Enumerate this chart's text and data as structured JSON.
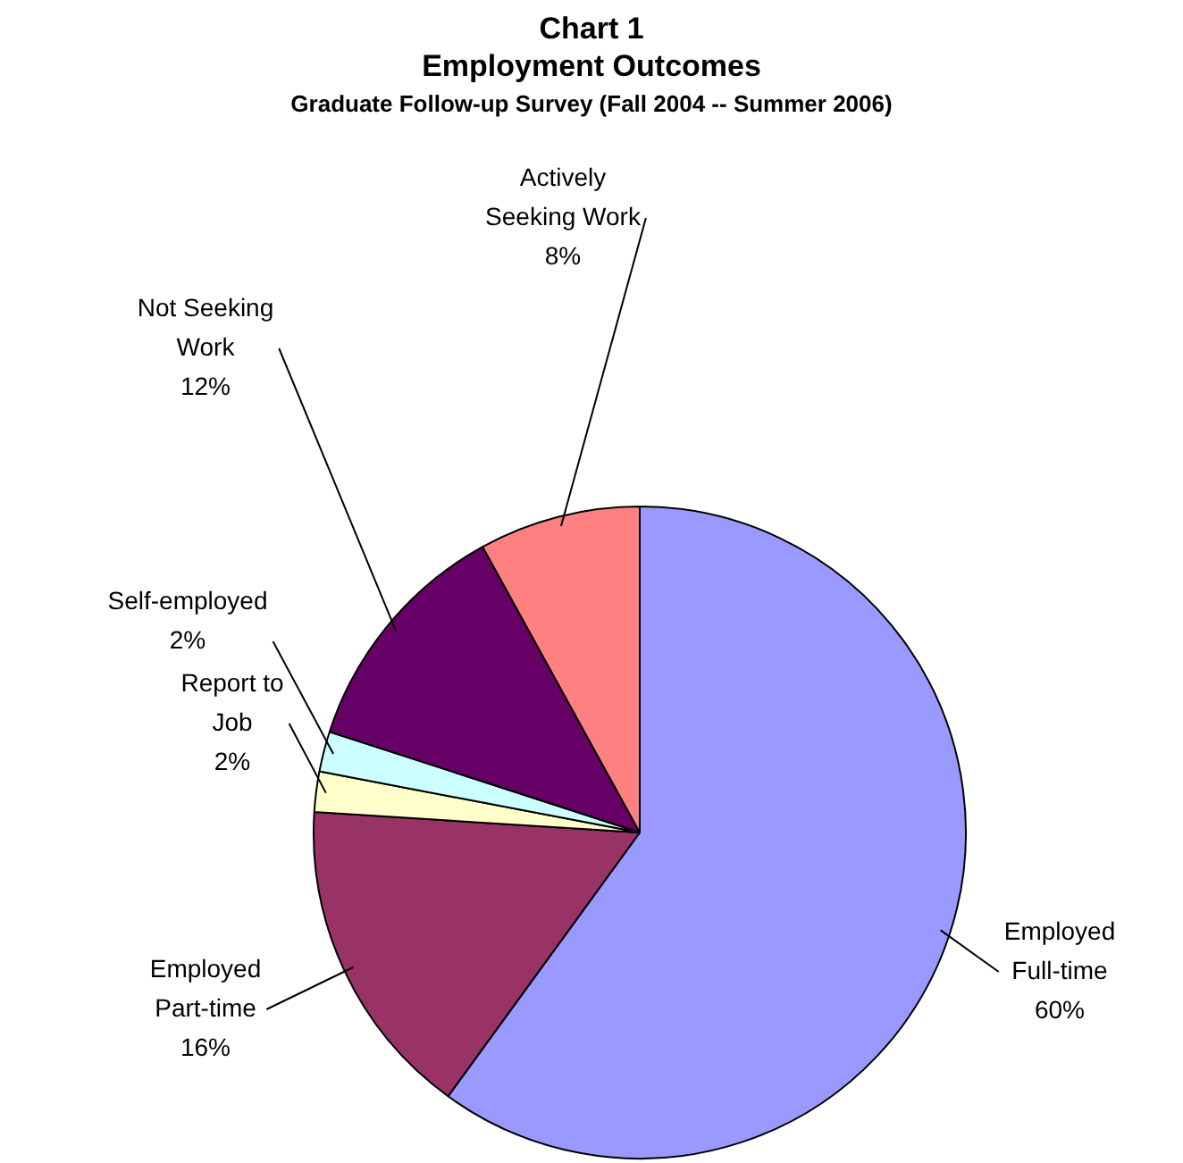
{
  "chart_data": {
    "type": "pie",
    "title": "Chart 1\nEmployment Outcomes",
    "subtitle": "Graduate Follow-up Survey (Fall 2004 -- Summer 2006)",
    "categories": [
      "Employed Full-time",
      "Employed Part-time",
      "Report to Job",
      "Self-employed",
      "Not Seeking Work",
      "Actively Seeking Work"
    ],
    "values": [
      60,
      16,
      2,
      2,
      12,
      8
    ],
    "value_labels": [
      "60%",
      "16%",
      "2%",
      "2%",
      "12%",
      "8%"
    ],
    "colors": [
      "#9999ff",
      "#993366",
      "#ffffcc",
      "#ccffff",
      "#660066",
      "#ff8080"
    ],
    "legend": false
  }
}
